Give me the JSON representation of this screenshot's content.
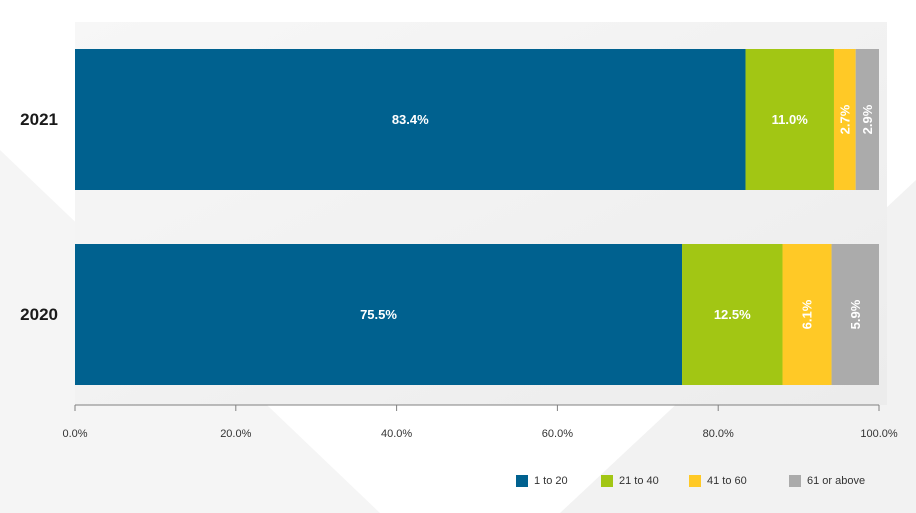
{
  "chart_data": {
    "type": "bar",
    "orientation": "horizontal",
    "stacked": true,
    "categories": [
      "2021",
      "2020"
    ],
    "series": [
      {
        "name": "1 to 20",
        "color": "#00618F",
        "values": [
          83.4,
          75.5
        ],
        "labels": [
          "83.4%",
          "75.5%"
        ]
      },
      {
        "name": "21 to 40",
        "color": "#A2C614",
        "values": [
          11.0,
          12.5
        ],
        "labels": [
          "11.0%",
          "12.5%"
        ]
      },
      {
        "name": "41 to 60",
        "color": "#FFC926",
        "values": [
          2.7,
          6.1
        ],
        "labels": [
          "2.7%",
          "6.1%"
        ]
      },
      {
        "name": "61 or above",
        "color": "#ABABAB",
        "values": [
          2.9,
          5.9
        ],
        "labels": [
          "2.9%",
          "5.9%"
        ]
      }
    ],
    "xlim": [
      0,
      100
    ],
    "xticks": [
      "0.0%",
      "20.0%",
      "40.0%",
      "60.0%",
      "80.0%",
      "100.0%"
    ],
    "title": "",
    "xlabel": "",
    "ylabel": "",
    "legend_position": "bottom-right",
    "grid": false
  }
}
